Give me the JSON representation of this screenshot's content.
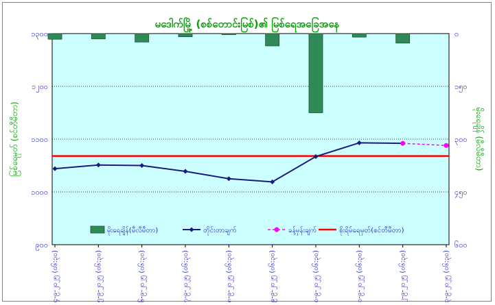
{
  "chart_data": {
    "type": "bar+line",
    "title": "မဒေါက်မြို့ (စစ်တောင်းမြစ်)၏ မြစ်ရေအခြေအနေ",
    "ylabel_left": "မြစ်ရေမှတ် (စင်တီမီတာ)",
    "ylabel_right": "မိုးရေချိန် (မီလီမီတာ)",
    "ylim_left": [
      900,
      1300
    ],
    "ylim_right_inverted": [
      0,
      600
    ],
    "left_ticks": [
      "၉၀၀",
      "၁၀၀၀",
      "၁၁၀၀",
      "၁၂၀၀",
      "၁၃၀၀"
    ],
    "right_ticks": [
      "၀",
      "၁၅၀",
      "၃၀၀",
      "၄၅၀",
      "၆၀၀"
    ],
    "categories": [
      "၄-၉-၂၀၂၅ (၀၆:၃၀)",
      "၅-၉-၂၀၂၅ (၀၆:၃၀)",
      "၆-၉-၂၀၂၅ (၀၆:၃၀)",
      "၇-၉-၂၀၂၅ (၀၆:၃၀)",
      "၈-၉-၂၀၂၅ (၀၆:၃၀)",
      "၉-၉-၂၀၂၅ (၀၆:၃၀)",
      "၁၀-၉-၂၀၂၅ (၀၆:၃၀)",
      "၁၁-၉-၂၀၂၅ (၀၆:၃၀)",
      "၁၂-၉-၂၀၂၅ (၀၆:၃၀)",
      "၁၃-၉-၂၀၂၅ (၀၆:၃၀)"
    ],
    "series": [
      {
        "name": "မိုးရေချိန်(မီလီမီတာ)",
        "kind": "bar",
        "axis": "right",
        "color": "#2e8b57",
        "values": [
          16,
          15,
          24,
          9,
          3,
          35,
          225,
          10,
          27,
          null
        ]
      },
      {
        "name": "တိုင်းတာချက်",
        "kind": "line",
        "axis": "left",
        "color": "#1a1a80",
        "values": [
          1044,
          1051,
          1050,
          1039,
          1025,
          1019,
          1067,
          1093,
          1092,
          null
        ]
      },
      {
        "name": "ခန့်မှန်းချက်",
        "kind": "dashed-line",
        "axis": "left",
        "color": "#ff00ff",
        "values": [
          null,
          null,
          null,
          null,
          null,
          null,
          null,
          null,
          1092,
          1088
        ]
      },
      {
        "name": "စိုးရိမ်ရေမှတ်(စင်တီမီတာ)",
        "kind": "hline",
        "axis": "left",
        "color": "#ff0000",
        "value": 1068
      }
    ],
    "plot_background": "#ccffff",
    "grid": "horizontal-dotted",
    "legend_position": "inside-bottom"
  }
}
